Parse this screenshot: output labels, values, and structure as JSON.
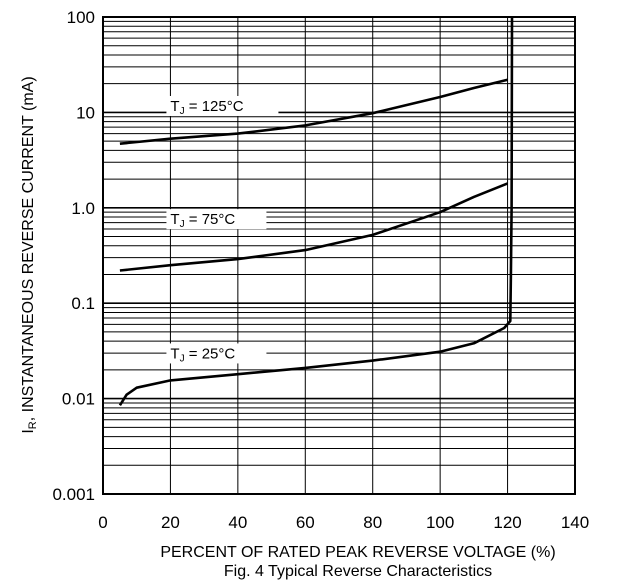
{
  "chart_data": {
    "type": "line",
    "title": "",
    "caption": "Fig. 4 Typical Reverse Characteristics",
    "xlabel": "PERCENT OF RATED PEAK REVERSE VOLTAGE (%)",
    "ylabel": {
      "symbol": "I",
      "subscript": "R",
      "text": ", INSTANTANEOUS REVERSE CURRENT (mA)"
    },
    "x_scale": "linear",
    "y_scale": "log",
    "xlim": [
      0,
      140
    ],
    "ylim": [
      0.001,
      100
    ],
    "x_ticks": [
      0,
      20,
      40,
      60,
      80,
      100,
      120,
      140
    ],
    "x_tick_labels": [
      "0",
      "20",
      "40",
      "60",
      "80",
      "100",
      "120",
      "140"
    ],
    "y_ticks": [
      0.001,
      0.01,
      0.1,
      1,
      10,
      100
    ],
    "y_tick_labels": [
      "0.001",
      "0.01",
      "0.1",
      "1.0",
      "10",
      "100"
    ],
    "grid": {
      "horizontal_minor_log": true,
      "vertical": true
    },
    "legend": "none",
    "series": [
      {
        "label": {
          "prefix": "T",
          "subscript": "J",
          "suffix": " = 125°C"
        },
        "points": [
          [
            5,
            4.7
          ],
          [
            20,
            5.3
          ],
          [
            40,
            6.0
          ],
          [
            60,
            7.3
          ],
          [
            80,
            9.8
          ],
          [
            100,
            14.5
          ],
          [
            110,
            18.0
          ],
          [
            120,
            22.0
          ]
        ]
      },
      {
        "label": {
          "prefix": "T",
          "subscript": "J",
          "suffix": " = 75°C"
        },
        "points": [
          [
            5,
            0.22
          ],
          [
            20,
            0.25
          ],
          [
            40,
            0.29
          ],
          [
            60,
            0.36
          ],
          [
            80,
            0.52
          ],
          [
            100,
            0.9
          ],
          [
            110,
            1.3
          ],
          [
            120,
            1.8
          ]
        ]
      },
      {
        "label": {
          "prefix": "T",
          "subscript": "J",
          "suffix": " = 25°C"
        },
        "points": [
          [
            5,
            0.0085
          ],
          [
            7,
            0.011
          ],
          [
            10,
            0.013
          ],
          [
            20,
            0.0155
          ],
          [
            40,
            0.018
          ],
          [
            60,
            0.021
          ],
          [
            80,
            0.025
          ],
          [
            100,
            0.031
          ],
          [
            110,
            0.038
          ],
          [
            119,
            0.055
          ],
          [
            120.8,
            0.065
          ],
          [
            121,
            0.2
          ],
          [
            121.2,
            1.0
          ],
          [
            121.3,
            100
          ]
        ]
      }
    ]
  }
}
